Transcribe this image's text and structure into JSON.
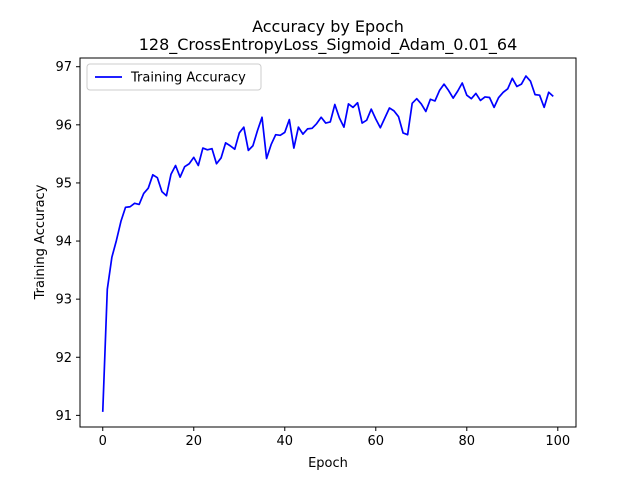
{
  "chart_data": {
    "type": "line",
    "title": "Accuracy by Epoch",
    "subtitle": "128_CrossEntropyLoss_Sigmoid_Adam_0.01_64",
    "xlabel": "Epoch",
    "ylabel": "Training Accuracy",
    "xlim": [
      -5,
      104
    ],
    "ylim": [
      90.8,
      97.15
    ],
    "xticks": [
      0,
      20,
      40,
      60,
      80,
      100
    ],
    "yticks": [
      91,
      92,
      93,
      94,
      95,
      96,
      97
    ],
    "grid": false,
    "legend": {
      "position": "top-left",
      "entries": [
        "Training Accuracy"
      ]
    },
    "series": [
      {
        "name": "Training Accuracy",
        "color": "#0000ff",
        "x": [
          0,
          1,
          2,
          3,
          4,
          5,
          6,
          7,
          8,
          9,
          10,
          11,
          12,
          13,
          14,
          15,
          16,
          17,
          18,
          19,
          20,
          21,
          22,
          23,
          24,
          25,
          26,
          27,
          28,
          29,
          30,
          31,
          32,
          33,
          34,
          35,
          36,
          37,
          38,
          39,
          40,
          41,
          42,
          43,
          44,
          45,
          46,
          47,
          48,
          49,
          50,
          51,
          52,
          53,
          54,
          55,
          56,
          57,
          58,
          59,
          60,
          61,
          62,
          63,
          64,
          65,
          66,
          67,
          68,
          69,
          70,
          71,
          72,
          73,
          74,
          75,
          76,
          77,
          78,
          79,
          80,
          81,
          82,
          83,
          84,
          85,
          86,
          87,
          88,
          89,
          90,
          91,
          92,
          93,
          94,
          95,
          96,
          97,
          98,
          99
        ],
        "values": [
          91.06,
          93.17,
          93.72,
          94.01,
          94.34,
          94.58,
          94.59,
          94.65,
          94.63,
          94.82,
          94.91,
          95.14,
          95.09,
          94.85,
          94.78,
          95.15,
          95.3,
          95.1,
          95.28,
          95.33,
          95.44,
          95.3,
          95.6,
          95.57,
          95.59,
          95.33,
          95.43,
          95.69,
          95.64,
          95.58,
          95.86,
          95.96,
          95.56,
          95.64,
          95.9,
          96.13,
          95.42,
          95.66,
          95.83,
          95.82,
          95.87,
          96.09,
          95.6,
          95.96,
          95.84,
          95.93,
          95.94,
          96.02,
          96.13,
          96.03,
          96.05,
          96.35,
          96.12,
          95.96,
          96.36,
          96.3,
          96.38,
          96.03,
          96.08,
          96.27,
          96.1,
          95.95,
          96.12,
          96.29,
          96.24,
          96.14,
          95.86,
          95.83,
          96.37,
          96.45,
          96.36,
          96.23,
          96.44,
          96.41,
          96.59,
          96.7,
          96.59,
          96.46,
          96.58,
          96.72,
          96.51,
          96.45,
          96.54,
          96.42,
          96.48,
          96.47,
          96.3,
          96.47,
          96.56,
          96.62,
          96.8,
          96.66,
          96.7,
          96.84,
          96.75,
          96.52,
          96.51,
          96.3,
          96.56,
          96.49
        ]
      }
    ]
  }
}
